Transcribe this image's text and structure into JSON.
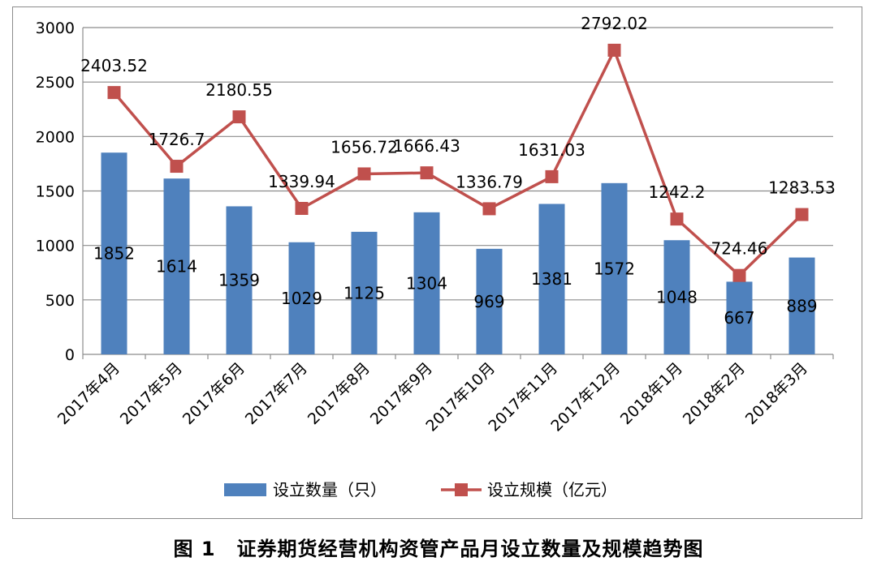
{
  "caption": {
    "number": "图 1",
    "text": "证券期货经营机构资管产品月设立数量及规模趋势图"
  },
  "chart_data": {
    "type": "bar",
    "categories": [
      "2017年4月",
      "2017年5月",
      "2017年6月",
      "2017年7月",
      "2017年8月",
      "2017年9月",
      "2017年10月",
      "2017年11月",
      "2017年12月",
      "2018年1月",
      "2018年2月",
      "2018年3月"
    ],
    "series": [
      {
        "name": "设立数量（只）",
        "type": "bar",
        "color": "#4f81bd",
        "values": [
          1852,
          1614,
          1359,
          1029,
          1125,
          1304,
          969,
          1381,
          1572,
          1048,
          667,
          889
        ],
        "labels": [
          "1852",
          "1614",
          "1359",
          "1029",
          "1125",
          "1304",
          "969",
          "1381",
          "1572",
          "1048",
          "667",
          "889"
        ]
      },
      {
        "name": "设立规模（亿元）",
        "type": "line",
        "color": "#c0504d",
        "values": [
          2403.52,
          1726.7,
          2180.55,
          1339.94,
          1656.72,
          1666.43,
          1336.79,
          1631.03,
          2792.02,
          1242.2,
          724.46,
          1283.53
        ],
        "labels": [
          "2403.52",
          "1726.7",
          "2180.55",
          "1339.94",
          "1656.72",
          "1666.43",
          "1336.79",
          "1631.03",
          "2792.02",
          "1242.2",
          "724.46",
          "1283.53"
        ]
      }
    ],
    "ylim": [
      0,
      3000
    ],
    "yticks": [
      "0",
      "500",
      "1000",
      "1500",
      "2000",
      "2500",
      "3000"
    ],
    "grid": true,
    "legend_position": "bottom"
  }
}
